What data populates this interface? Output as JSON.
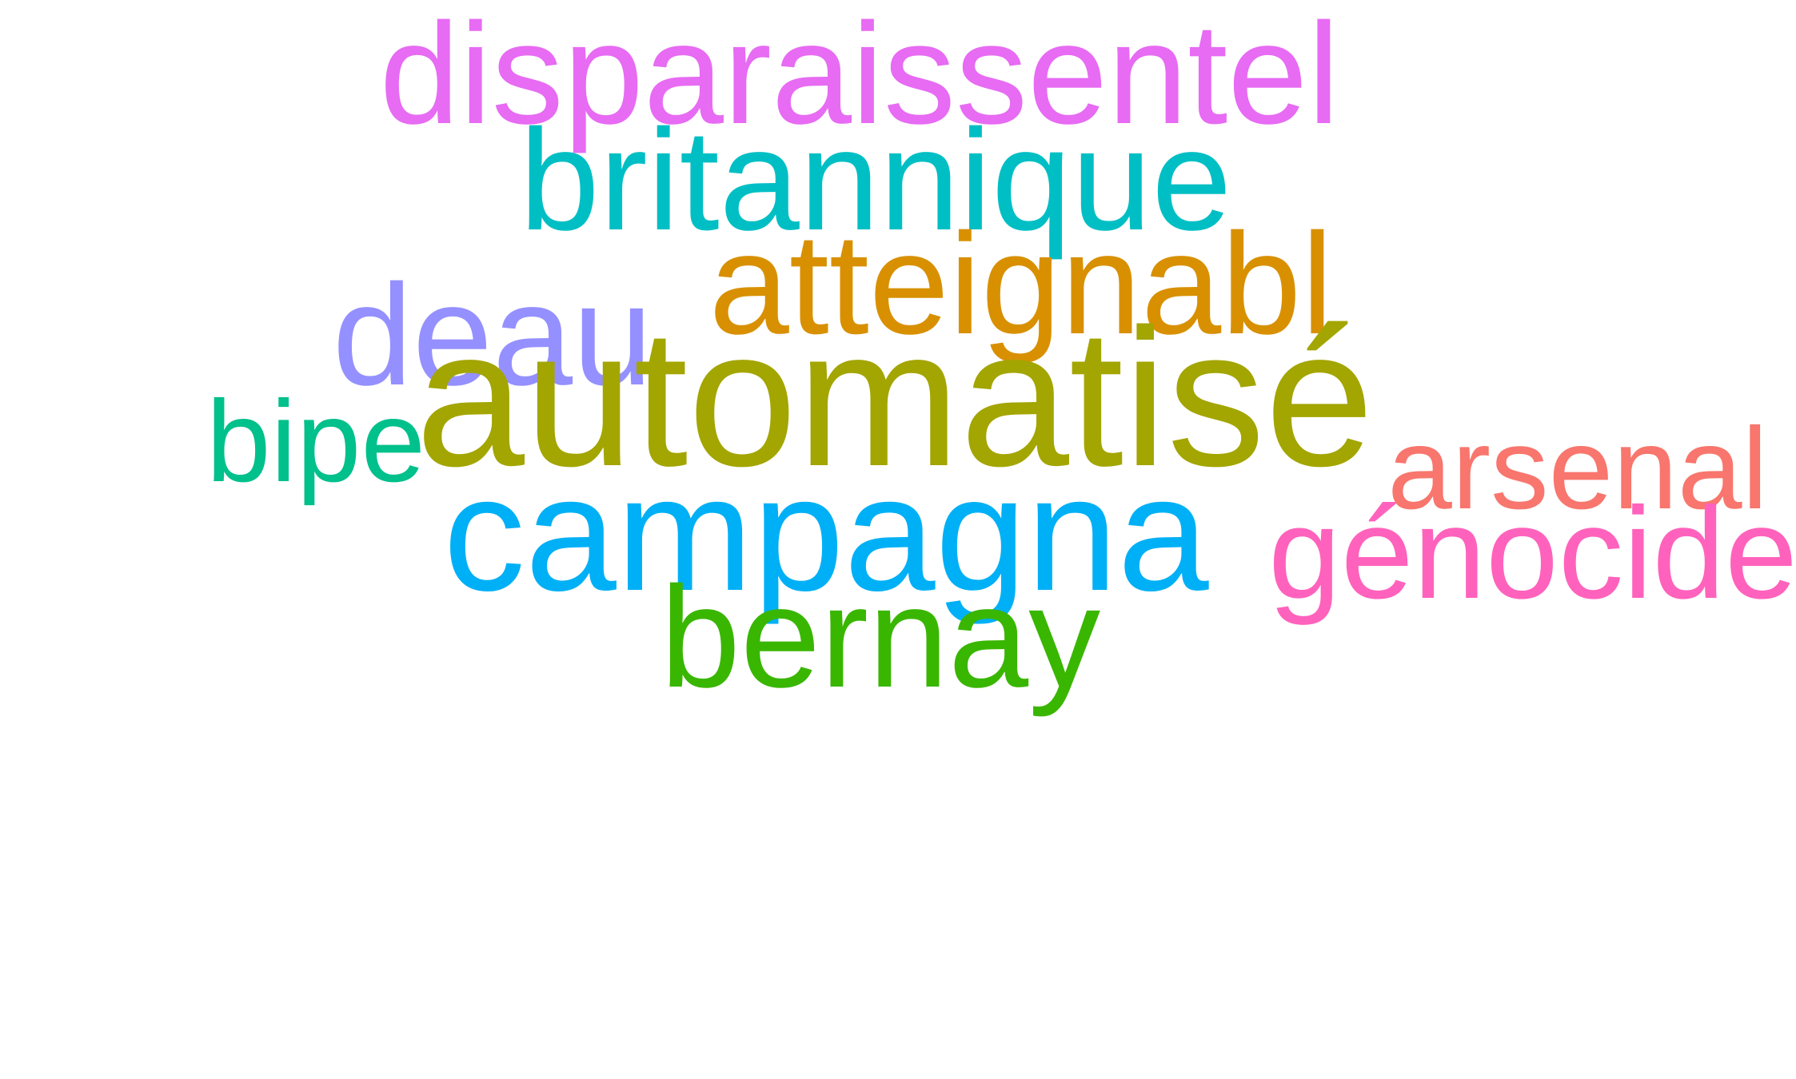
{
  "words": [
    {
      "text": "disparaissentel",
      "color": "#e76bf3"
    },
    {
      "text": "britannique",
      "color": "#00bfc4"
    },
    {
      "text": "atteignabl",
      "color": "#d89000"
    },
    {
      "text": "deau",
      "color": "#9590ff"
    },
    {
      "text": "bipe",
      "color": "#00c08b"
    },
    {
      "text": "automatisé",
      "color": "#a3a500"
    },
    {
      "text": "arsenal",
      "color": "#f8766d"
    },
    {
      "text": "campagna",
      "color": "#00b0f6"
    },
    {
      "text": "génocide",
      "color": "#ff62bc"
    },
    {
      "text": "bernay",
      "color": "#39b600"
    }
  ]
}
